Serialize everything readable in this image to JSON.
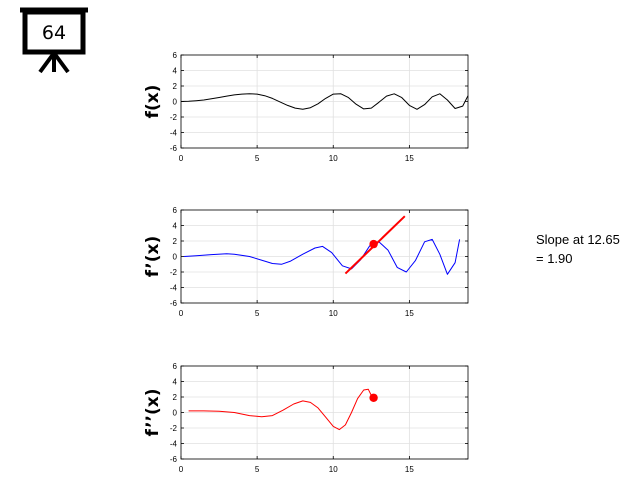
{
  "badge": {
    "icon": "presentation-board-icon",
    "number": "64"
  },
  "annotation": {
    "line1": "Slope at 12.65",
    "line2": "= 1.90"
  },
  "chart_data": [
    {
      "type": "line",
      "ylabel": "f(x)",
      "xlim": [
        0,
        18.85
      ],
      "ylim": [
        -6,
        6
      ],
      "xticks": [
        0,
        5,
        10,
        15
      ],
      "yticks": [
        6,
        4,
        2,
        0,
        -2,
        -4,
        -6
      ],
      "grid": true,
      "series": [
        {
          "color": "#000000",
          "x": [
            0,
            0.5,
            1,
            1.5,
            2,
            2.5,
            3,
            3.5,
            4,
            4.5,
            5,
            5.5,
            6,
            6.5,
            7,
            7.5,
            8,
            8.5,
            9,
            9.5,
            10,
            10.5,
            11,
            11.5,
            12,
            12.5,
            13,
            13.5,
            14,
            14.5,
            15,
            15.5,
            16,
            16.5,
            17,
            17.5,
            18,
            18.5,
            18.85
          ],
          "y": [
            0,
            0.03,
            0.1,
            0.2,
            0.35,
            0.52,
            0.7,
            0.85,
            0.95,
            1.0,
            0.95,
            0.75,
            0.4,
            -0.05,
            -0.5,
            -0.85,
            -1.0,
            -0.8,
            -0.3,
            0.4,
            0.95,
            1.0,
            0.5,
            -0.35,
            -0.95,
            -0.85,
            -0.1,
            0.7,
            1.0,
            0.5,
            -0.5,
            -1.0,
            -0.4,
            0.6,
            1.0,
            0.2,
            -0.9,
            -0.6,
            0.75
          ]
        }
      ]
    },
    {
      "type": "line",
      "ylabel": "f’(x)",
      "xlim": [
        0,
        18.85
      ],
      "ylim": [
        -6,
        6
      ],
      "xticks": [
        0,
        5,
        10,
        15
      ],
      "yticks": [
        6,
        4,
        2,
        0,
        -2,
        -4,
        -6
      ],
      "grid": true,
      "series": [
        {
          "color": "#0000ff",
          "x": [
            0.2,
            1,
            2,
            3,
            3.5,
            4.5,
            5.5,
            6,
            6.6,
            7.2,
            8,
            8.8,
            9.3,
            9.9,
            10.6,
            11.2,
            11.8,
            12.4,
            13,
            13.6,
            14.2,
            14.8,
            15.4,
            16,
            16.5,
            17,
            17.5,
            18,
            18.3
          ],
          "y": [
            0,
            0.1,
            0.25,
            0.35,
            0.3,
            0.0,
            -0.6,
            -0.9,
            -1.0,
            -0.6,
            0.3,
            1.1,
            1.3,
            0.5,
            -1.2,
            -1.6,
            -0.4,
            1.4,
            1.9,
            0.8,
            -1.4,
            -2.0,
            -0.5,
            1.9,
            2.2,
            0.3,
            -2.3,
            -0.8,
            2.2
          ]
        }
      ],
      "tangent": {
        "x": [
          10.8,
          14.7
        ],
        "y": [
          -2.2,
          5.2
        ],
        "color": "#ff0000"
      },
      "point": {
        "x": 12.65,
        "y": 1.6,
        "color": "#ff0000"
      }
    },
    {
      "type": "line",
      "ylabel": "f’’(x)",
      "xlim": [
        0,
        18.85
      ],
      "ylim": [
        -6,
        6
      ],
      "xticks": [
        0,
        5,
        10,
        15
      ],
      "yticks": [
        6,
        4,
        2,
        0,
        -2,
        -4,
        -6
      ],
      "grid": true,
      "series": [
        {
          "color": "#ff0000",
          "x": [
            0.5,
            1.5,
            2.5,
            3.5,
            4.5,
            5.3,
            6,
            6.7,
            7.4,
            8,
            8.5,
            9,
            9.5,
            10,
            10.4,
            10.8,
            11.2,
            11.6,
            12,
            12.3,
            12.5
          ],
          "y": [
            0.2,
            0.2,
            0.15,
            0.0,
            -0.4,
            -0.55,
            -0.4,
            0.3,
            1.1,
            1.5,
            1.3,
            0.6,
            -0.6,
            -1.8,
            -2.2,
            -1.6,
            0.0,
            1.8,
            2.9,
            3.0,
            2.2
          ]
        }
      ],
      "point": {
        "x": 12.65,
        "y": 1.9,
        "color": "#ff0000"
      }
    }
  ]
}
